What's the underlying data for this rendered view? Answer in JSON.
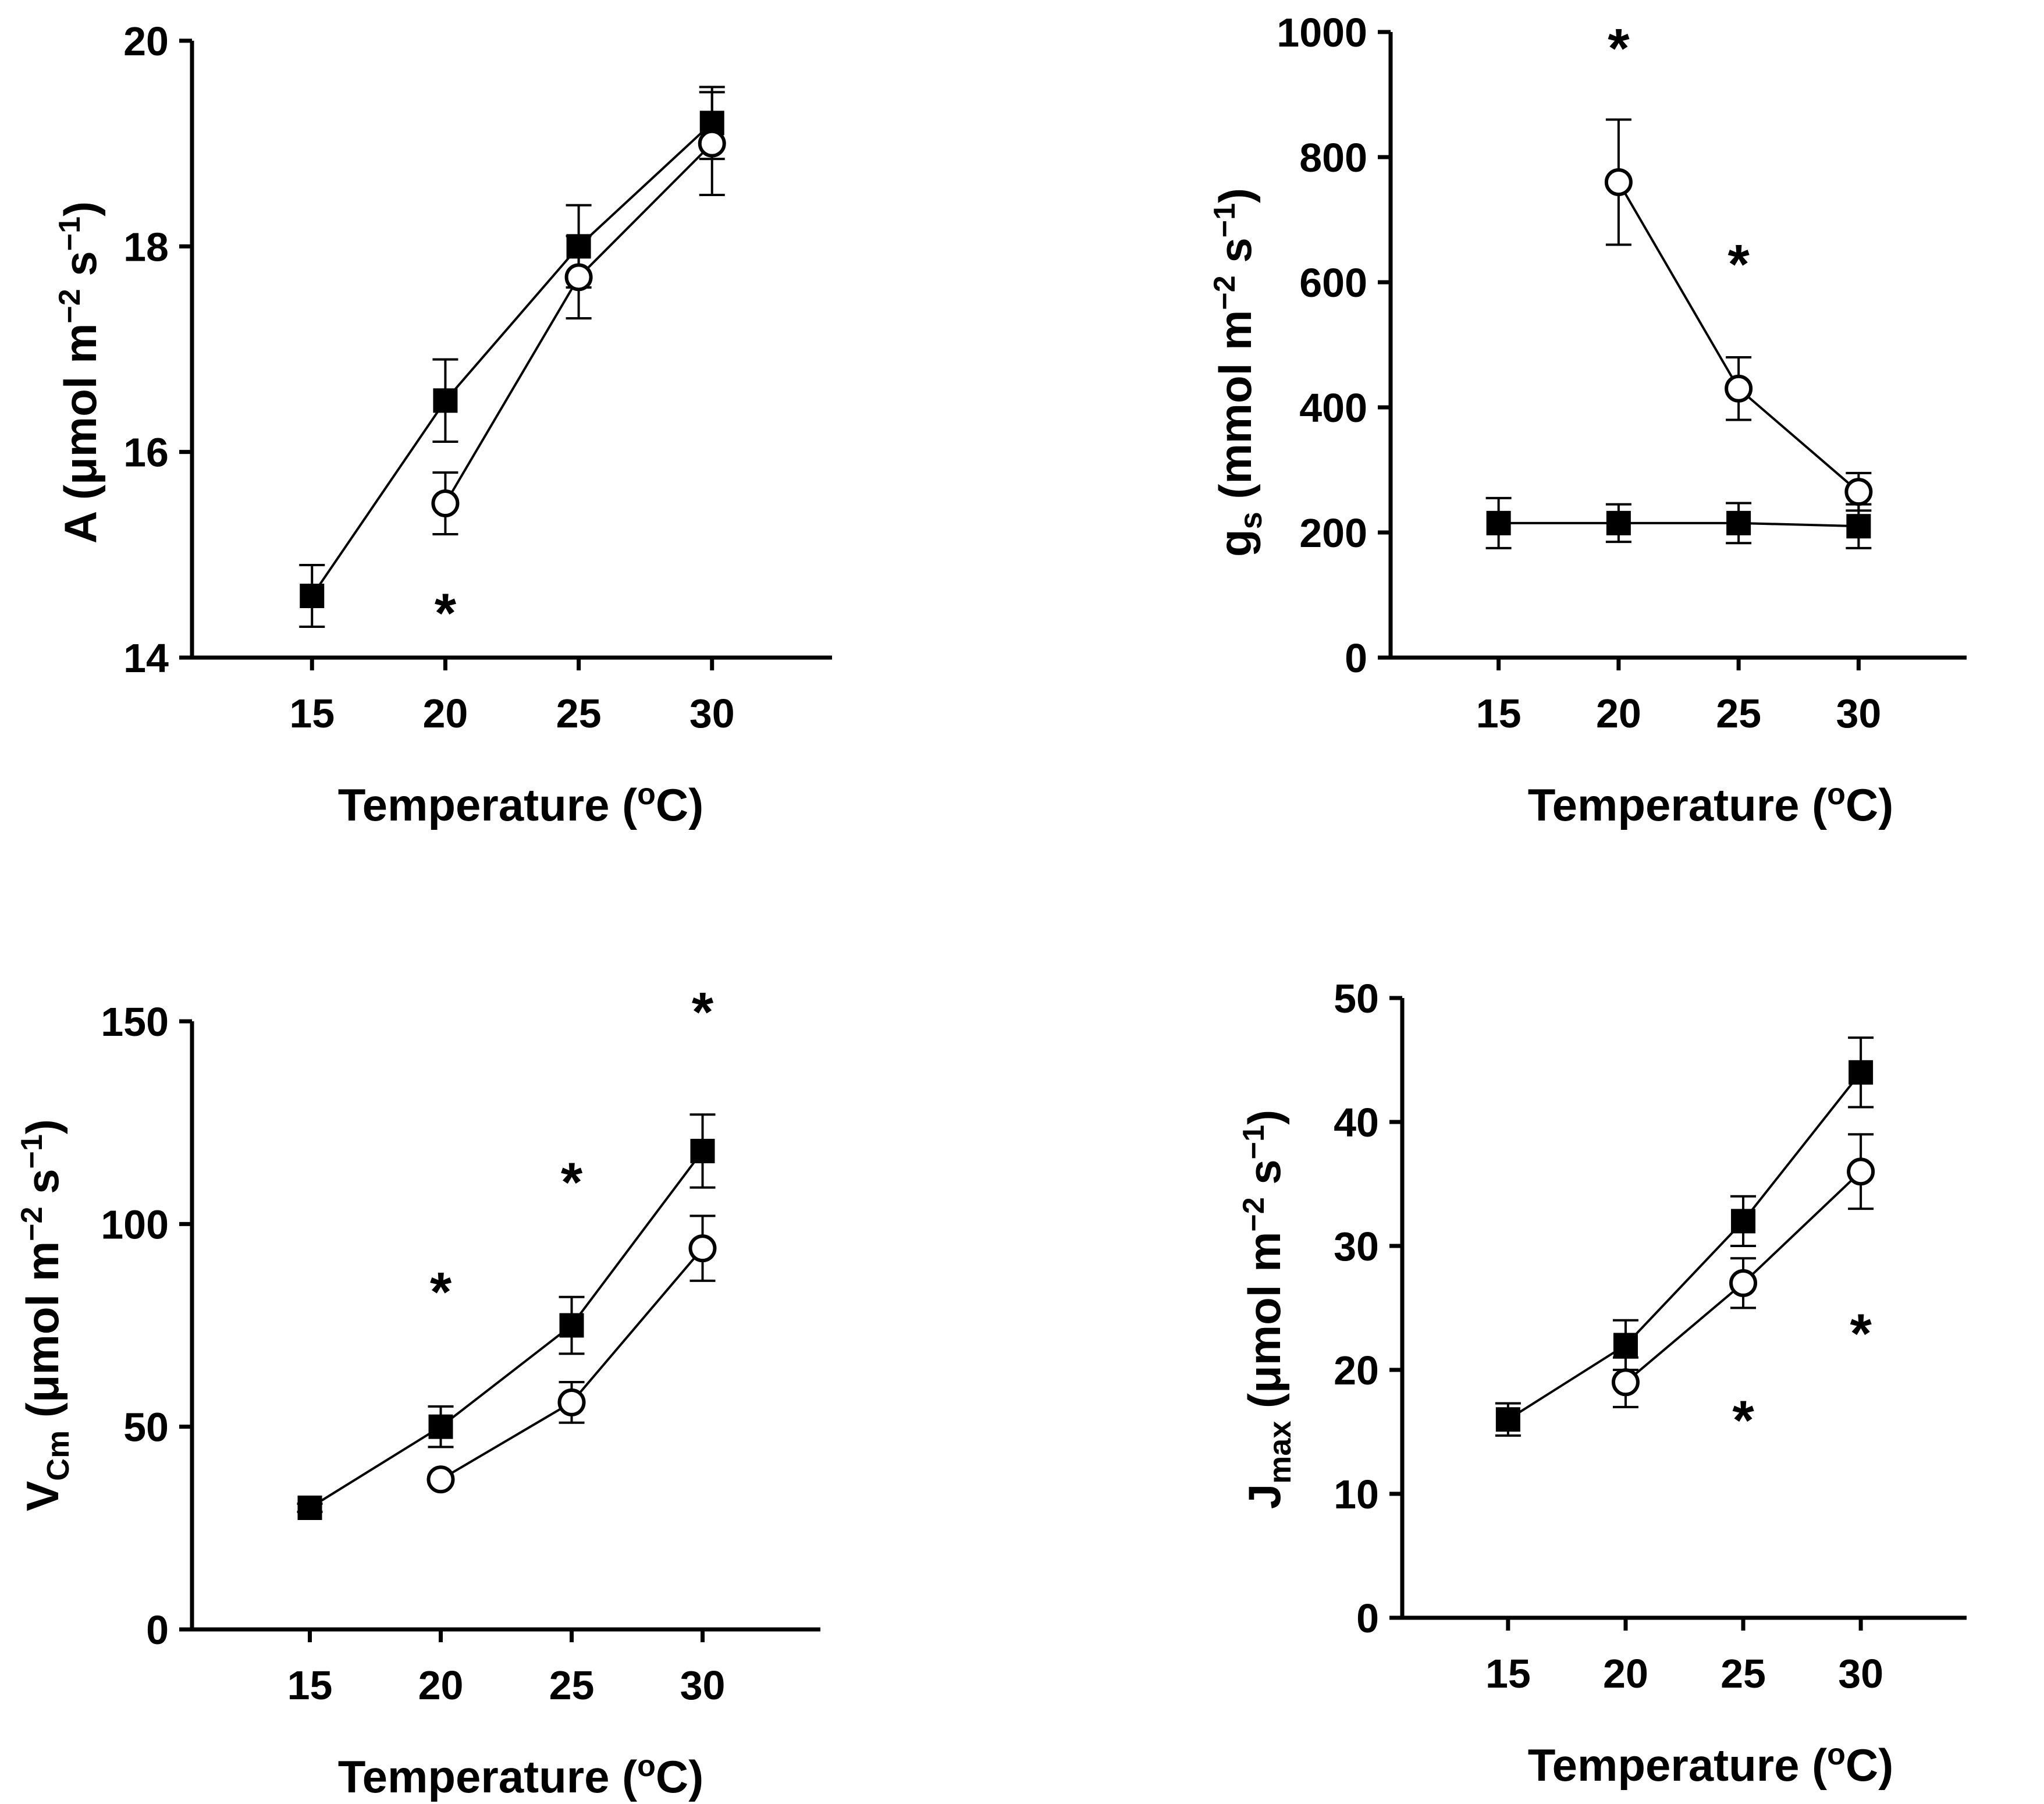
{
  "figure_description": "Four panels of photosynthetic parameters versus temperature; filled squares and open circles are two treatment series",
  "series_legend": [
    {
      "key": "filled",
      "marker": "filled-square"
    },
    {
      "key": "open",
      "marker": "open-circle"
    }
  ],
  "colors": {
    "ink": "#000000",
    "background": "#ffffff"
  },
  "chart_data": [
    {
      "id": "A",
      "type": "line",
      "xlabel": "Temperature (oC)",
      "ylabel": "A (μmol m−2 s−1)",
      "x_ticks": [
        15,
        20,
        25,
        30
      ],
      "x_tick_labels": [
        "15",
        "20",
        "25",
        "30"
      ],
      "xlim": [
        10.5,
        34.5
      ],
      "y_ticks": [
        14,
        16,
        18,
        20
      ],
      "y_tick_labels": [
        "14",
        "16",
        "18",
        "20"
      ],
      "ylim": [
        14,
        20
      ],
      "series": [
        {
          "name": "filled",
          "marker": "square",
          "x": [
            15,
            20,
            25,
            30
          ],
          "y": [
            14.6,
            16.5,
            18.0,
            19.2
          ],
          "err": [
            0.3,
            0.4,
            0.4,
            0.35
          ]
        },
        {
          "name": "open",
          "marker": "circle",
          "x": [
            20,
            25,
            30
          ],
          "y": [
            15.5,
            17.7,
            19.0
          ],
          "err": [
            0.3,
            0.4,
            0.5
          ]
        }
      ],
      "annotations": [
        {
          "text": "*",
          "x": 20,
          "y": 14.5
        }
      ]
    },
    {
      "id": "gs",
      "type": "line",
      "xlabel": "Temperature (oC)",
      "ylabel": "gs (mmol m−2 s−1)",
      "x_ticks": [
        15,
        20,
        25,
        30
      ],
      "x_tick_labels": [
        "15",
        "20",
        "25",
        "30"
      ],
      "xlim": [
        10.5,
        34.5
      ],
      "y_ticks": [
        0,
        200,
        400,
        600,
        800,
        1000
      ],
      "y_tick_labels": [
        "0",
        "200",
        "400",
        "600",
        "800",
        "1000"
      ],
      "ylim": [
        0,
        1000
      ],
      "series": [
        {
          "name": "filled",
          "marker": "square",
          "x": [
            15,
            20,
            25,
            30
          ],
          "y": [
            215,
            215,
            215,
            210
          ],
          "err": [
            40,
            30,
            32,
            35
          ]
        },
        {
          "name": "open",
          "marker": "circle",
          "x": [
            20,
            25,
            30
          ],
          "y": [
            760,
            430,
            265
          ],
          "err": [
            100,
            50,
            30
          ]
        }
      ],
      "annotations": [
        {
          "text": "*",
          "x": 20,
          "y": 985
        },
        {
          "text": "*",
          "x": 25,
          "y": 640
        }
      ]
    },
    {
      "id": "Vcm",
      "type": "line",
      "xlabel": "Temperature (oC)",
      "ylabel": "VCm (μmol m−2 s−1)",
      "x_ticks": [
        15,
        20,
        25,
        30
      ],
      "x_tick_labels": [
        "15",
        "20",
        "25",
        "30"
      ],
      "xlim": [
        10.5,
        34.5
      ],
      "y_ticks": [
        0,
        50,
        100,
        150
      ],
      "y_tick_labels": [
        "0",
        "50",
        "100",
        "150"
      ],
      "ylim": [
        0,
        150
      ],
      "series": [
        {
          "name": "filled",
          "marker": "square",
          "x": [
            15,
            20,
            25,
            30
          ],
          "y": [
            30,
            50,
            75,
            118
          ],
          "err": [
            1,
            5,
            7,
            9
          ]
        },
        {
          "name": "open",
          "marker": "circle",
          "x": [
            20,
            25,
            30
          ],
          "y": [
            37,
            56,
            94
          ],
          "err": [
            1,
            5,
            8
          ]
        }
      ],
      "annotations": [
        {
          "text": "*",
          "x": 20,
          "y": 85
        },
        {
          "text": "*",
          "x": 25,
          "y": 112
        },
        {
          "text": "*",
          "x": 30,
          "y": 154
        }
      ]
    },
    {
      "id": "Jmax",
      "type": "line",
      "xlabel": "Temperature (oC)",
      "ylabel": "Jmax (μmol m−2 s−1)",
      "x_ticks": [
        15,
        20,
        25,
        30
      ],
      "x_tick_labels": [
        "15",
        "20",
        "25",
        "30"
      ],
      "xlim": [
        10.5,
        34.5
      ],
      "y_ticks": [
        0,
        10,
        20,
        30,
        40,
        50
      ],
      "y_tick_labels": [
        "0",
        "10",
        "20",
        "30",
        "40",
        "50"
      ],
      "ylim": [
        0,
        50
      ],
      "series": [
        {
          "name": "filled",
          "marker": "square",
          "x": [
            15,
            20,
            25,
            30
          ],
          "y": [
            16,
            22,
            32,
            44
          ],
          "err": [
            1.3,
            2,
            2,
            2.8
          ]
        },
        {
          "name": "open",
          "marker": "circle",
          "x": [
            20,
            25,
            30
          ],
          "y": [
            19,
            27,
            36
          ],
          "err": [
            2,
            2,
            3
          ]
        }
      ],
      "annotations": [
        {
          "text": "*",
          "x": 25,
          "y": 16.5
        },
        {
          "text": "*",
          "x": 30,
          "y": 23.5
        }
      ]
    }
  ]
}
